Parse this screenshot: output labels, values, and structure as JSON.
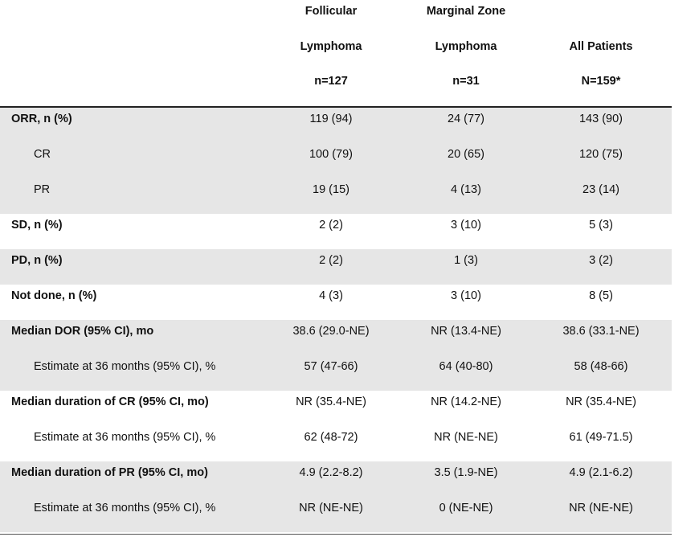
{
  "header": {
    "follicular": {
      "l1": "Follicular",
      "l2": "Lymphoma",
      "l3": "n=127"
    },
    "marginal": {
      "l1": "Marginal Zone",
      "l2": "Lymphoma",
      "l3": "n=31"
    },
    "all": {
      "l1": "",
      "l2": "All Patients",
      "l3": "N=159*"
    }
  },
  "rows": [
    {
      "label": "ORR, n (%)",
      "fl": "119 (94)",
      "mz": "24 (77)",
      "all": "143 (90)"
    },
    {
      "label": "CR",
      "fl": "100 (79)",
      "mz": "20 (65)",
      "all": "120 (75)"
    },
    {
      "label": "PR",
      "fl": "19 (15)",
      "mz": "4 (13)",
      "all": "23 (14)"
    },
    {
      "label": "SD, n (%)",
      "fl": "2 (2)",
      "mz": "3 (10)",
      "all": "5 (3)"
    },
    {
      "label": "PD, n (%)",
      "fl": "2 (2)",
      "mz": "1 (3)",
      "all": "3 (2)"
    },
    {
      "label": "Not done, n (%)",
      "fl": "4 (3)",
      "mz": "3 (10)",
      "all": "8 (5)"
    },
    {
      "label": "Median DOR (95% CI), mo",
      "fl": "38.6 (29.0-NE)",
      "mz": "NR (13.4-NE)",
      "all": "38.6 (33.1-NE)"
    },
    {
      "label": "Estimate at 36 months (95% CI), %",
      "fl": "57 (47-66)",
      "mz": "64 (40-80)",
      "all": "58 (48-66)"
    },
    {
      "label": "Median duration of CR (95% CI, mo)",
      "fl": "NR (35.4-NE)",
      "mz": "NR (14.2-NE)",
      "all": "NR (35.4-NE)"
    },
    {
      "label": "Estimate at 36 months (95% CI), %",
      "fl": "62 (48-72)",
      "mz": "NR (NE-NE)",
      "all": "61 (49-71.5)"
    },
    {
      "label": "Median duration of PR (95% CI, mo)",
      "fl": "4.9 (2.2-8.2)",
      "mz": "3.5 (1.9-NE)",
      "all": "4.9 (2.1-6.2)"
    },
    {
      "label": "Estimate at 36 months (95% CI), %",
      "fl": "NR (NE-NE)",
      "mz": "0 (NE-NE)",
      "all": "NR (NE-NE)"
    }
  ]
}
